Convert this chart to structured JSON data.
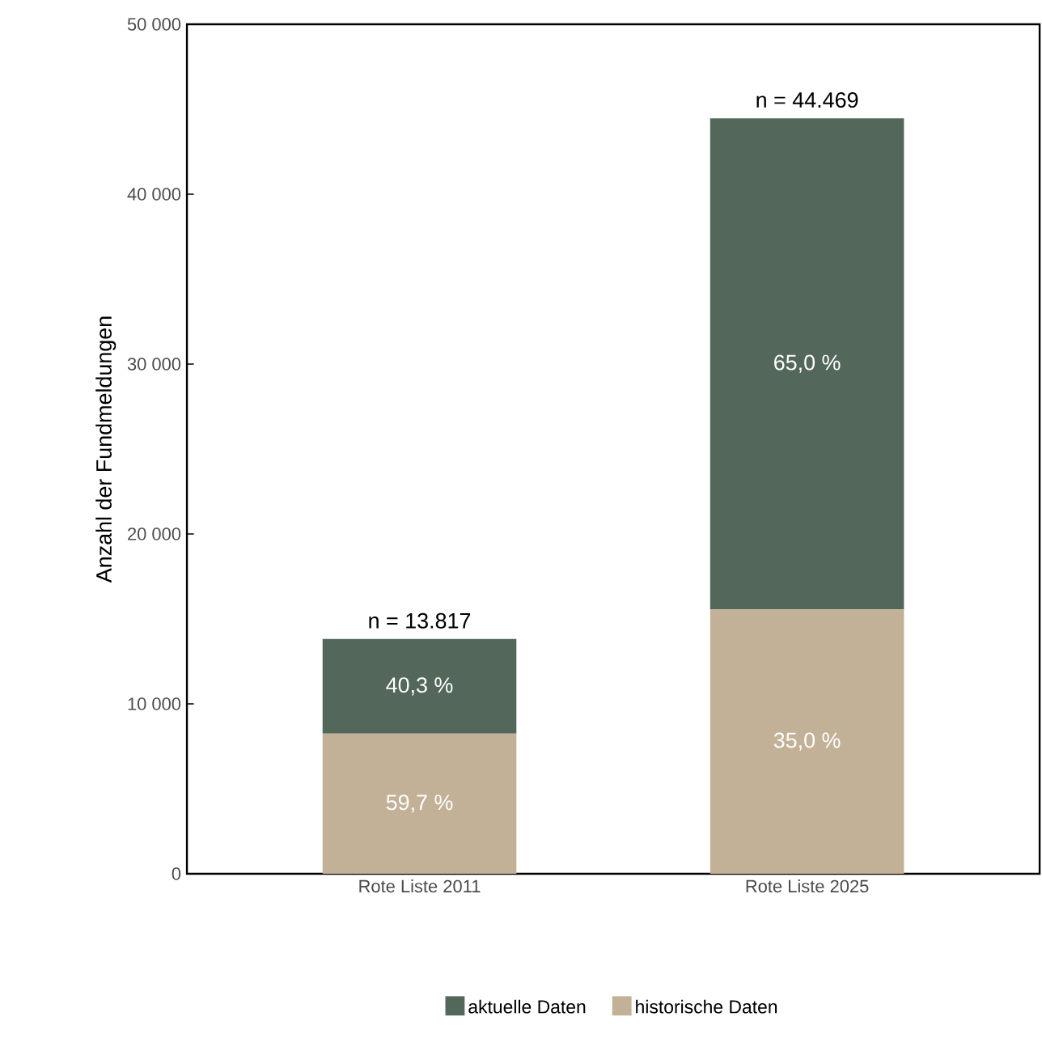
{
  "chart_data": {
    "type": "bar",
    "stacked": true,
    "ylabel": "Anzahl der Fundmeldungen",
    "categories": [
      "Rote Liste 2011",
      "Rote Liste 2025"
    ],
    "series": [
      {
        "name": "historische Daten",
        "color": "#c2b196",
        "values": [
          8249,
          15564
        ]
      },
      {
        "name": "aktuelle Daten",
        "color": "#53675a",
        "values": [
          5568,
          28905
        ]
      }
    ],
    "annotations": [
      "59,7 %",
      "40,3 %",
      "35,0 %",
      "65,0 %"
    ],
    "totals": [
      "n = 13.817",
      "n = 44.469"
    ],
    "ylim": [
      0,
      50000
    ],
    "yticks": [
      0,
      {
        "value": 10000,
        "label": "10 000"
      },
      {
        "value": 20000,
        "label": "20 000"
      },
      {
        "value": 30000,
        "label": "30 000"
      },
      {
        "value": 40000,
        "label": "40 000"
      },
      {
        "value": 50000,
        "label": "50 000"
      }
    ],
    "grid": false,
    "legend": "bottom"
  }
}
